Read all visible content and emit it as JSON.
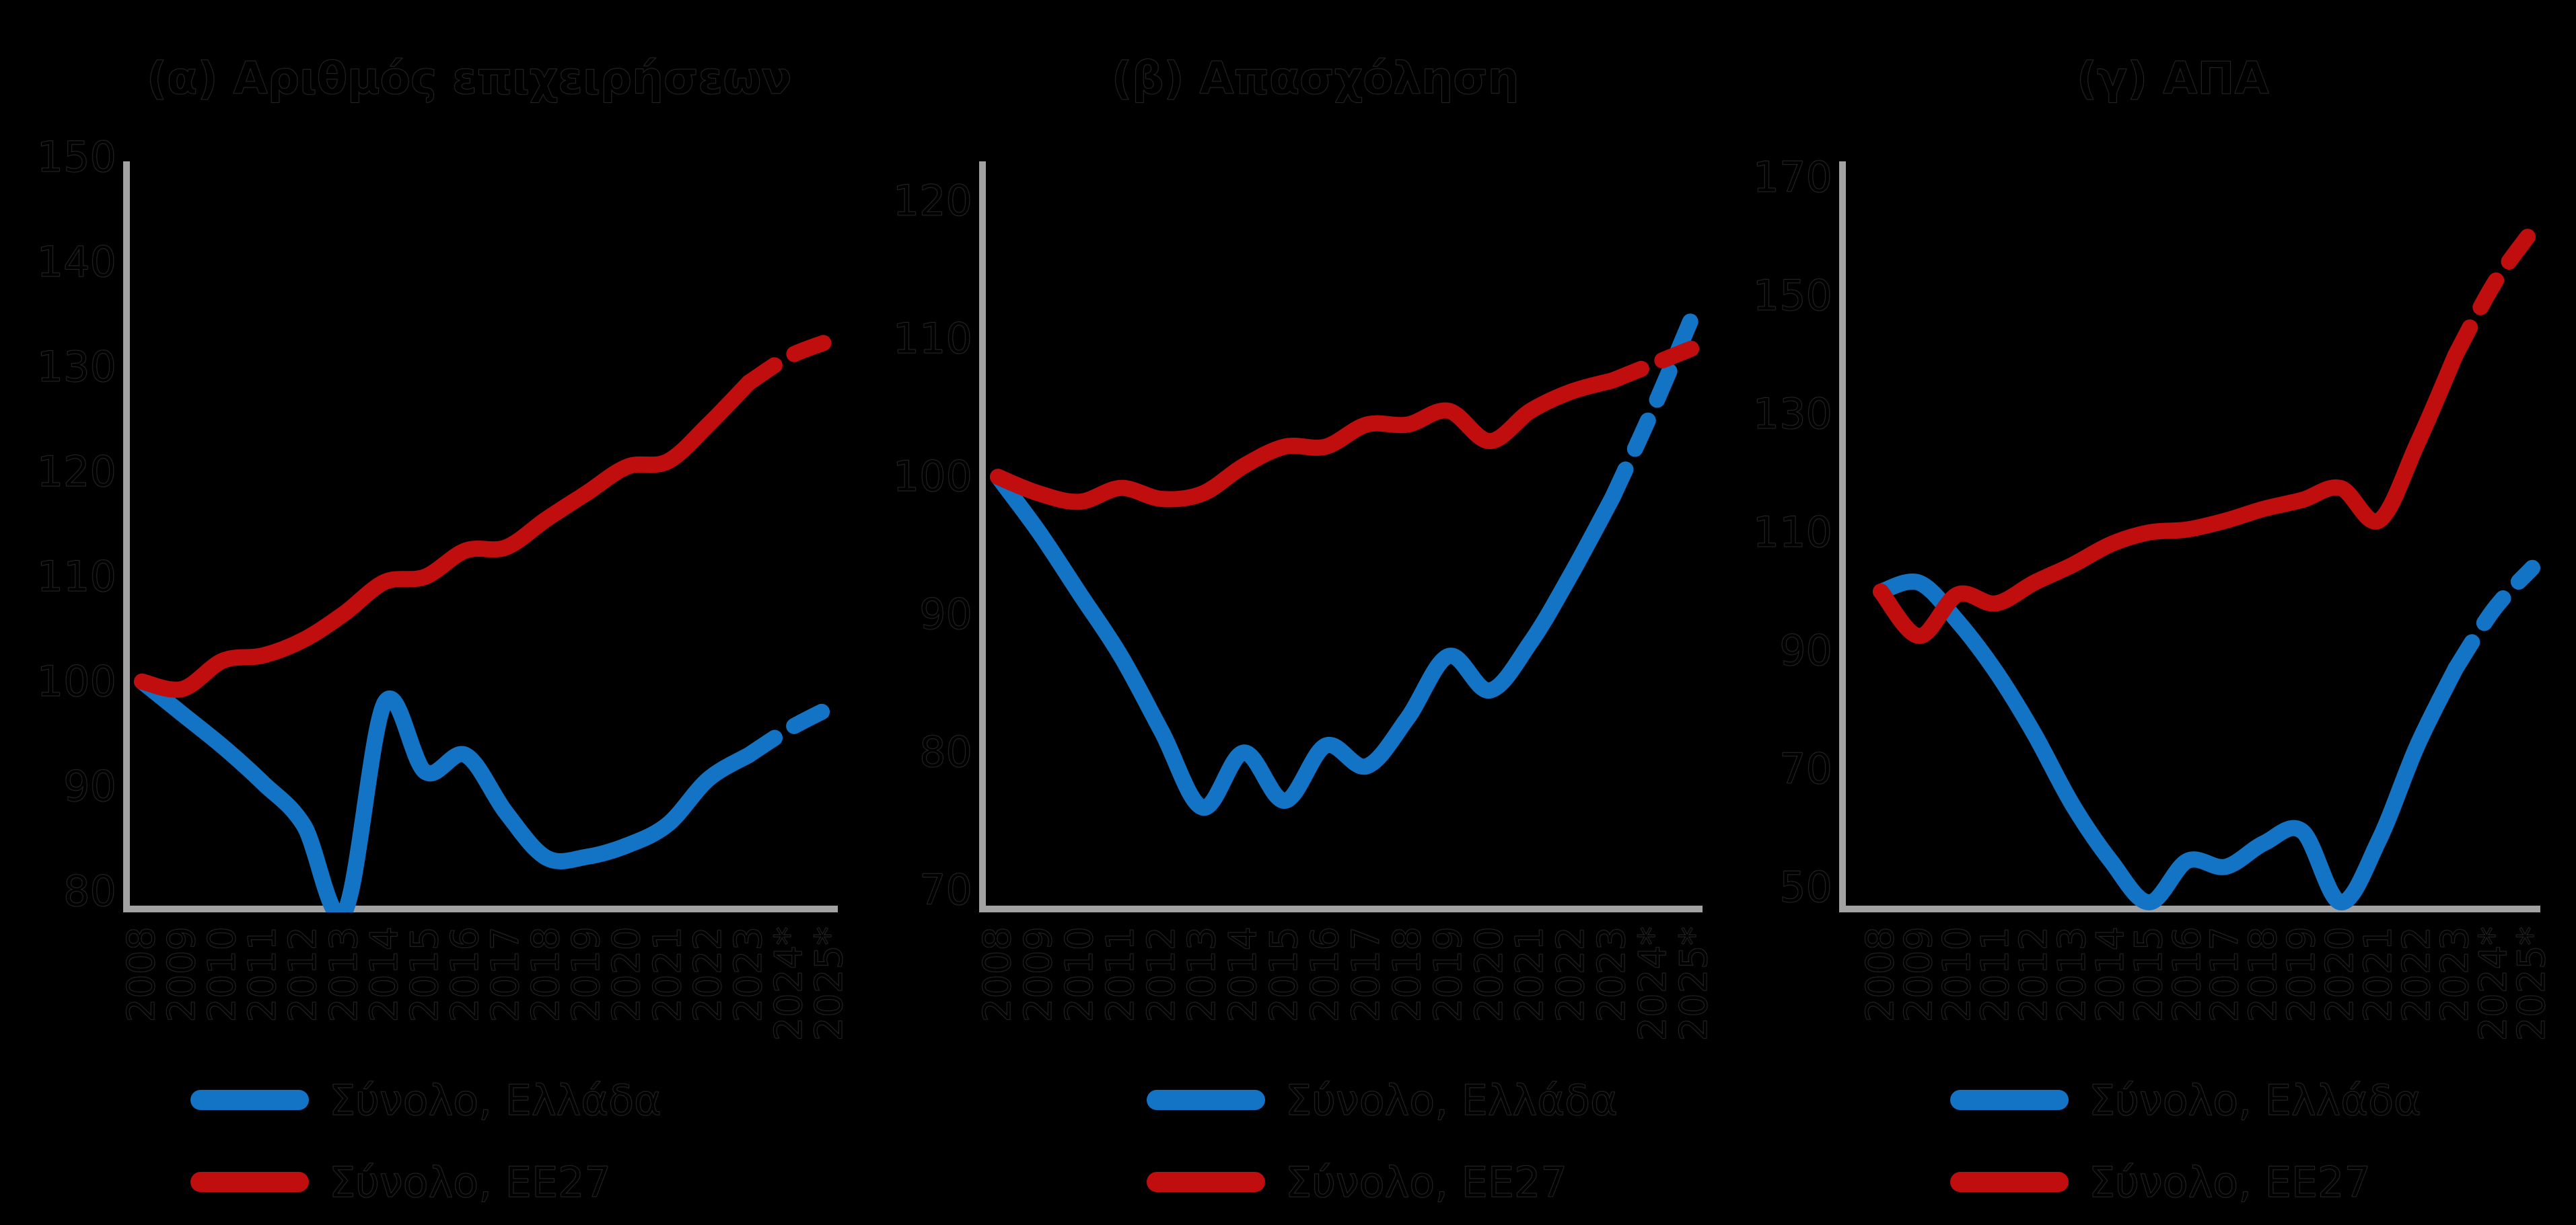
{
  "page": {
    "background": "#000000",
    "axis_color": "#a2a2a2",
    "accent_blue": "#1373c4",
    "accent_red": "#c00d0e"
  },
  "chart_data": [
    {
      "type": "line",
      "title": "(α) Αριθμός επιχειρήσεων",
      "x": [
        "2008",
        "2009",
        "2010",
        "2011",
        "2012",
        "2013",
        "2014",
        "2015",
        "2016",
        "2017",
        "2018",
        "2019",
        "2020",
        "2021",
        "2022",
        "2023",
        "2024*",
        "2025*"
      ],
      "xlabel": "",
      "ylabel": "",
      "ylim": [
        78.0,
        149.6
      ],
      "yticks": [
        80,
        90,
        100,
        110,
        120,
        130,
        140,
        150
      ],
      "grid": false,
      "legend_position": "bottom",
      "dashed_from_index": 15,
      "series": [
        {
          "name": "Σύνολο, Ελλάδα",
          "color": "#1373c4",
          "values": [
            100,
            96.9,
            93.8,
            90.3,
            86.3,
            78,
            98,
            91.4,
            93,
            87.5,
            83.2,
            83.3,
            84.4,
            86.4,
            90.7,
            93,
            95.5,
            97.5
          ]
        },
        {
          "name": "Σύνολο, ΕΕ27",
          "color": "#c00d0e",
          "values": [
            100,
            99.3,
            102,
            102.5,
            104,
            106.5,
            109.5,
            110,
            112.5,
            112.8,
            115.5,
            118,
            120.5,
            121,
            124.5,
            128.5,
            131,
            132.5
          ]
        }
      ]
    },
    {
      "type": "line",
      "title": "(β) Απασχόληση",
      "x": [
        "2008",
        "2009",
        "2010",
        "2011",
        "2012",
        "2013",
        "2014",
        "2015",
        "2016",
        "2017",
        "2018",
        "2019",
        "2020",
        "2021",
        "2022",
        "2023",
        "2024*",
        "2025*"
      ],
      "xlabel": "",
      "ylabel": "",
      "ylim": [
        68.4,
        122.9
      ],
      "yticks": [
        70,
        80,
        90,
        100,
        110,
        120
      ],
      "grid": false,
      "legend_position": "bottom",
      "dashed_from_index": 15,
      "series": [
        {
          "name": "Σύνολο, Ελλάδα",
          "color": "#1373c4",
          "values": [
            100,
            96,
            91.5,
            87,
            81.5,
            76,
            80,
            76.5,
            80.5,
            79,
            82.5,
            87,
            84.5,
            88,
            93,
            98.5,
            105,
            112
          ]
        },
        {
          "name": "Σύνολο, ΕΕ27",
          "color": "#c00d0e",
          "values": [
            100,
            98.8,
            98.2,
            99.2,
            98.4,
            98.8,
            100.8,
            102.2,
            102.2,
            103.8,
            103.8,
            104.8,
            102.6,
            104.8,
            106.2,
            107,
            108.2,
            109.4
          ]
        }
      ]
    },
    {
      "type": "line",
      "title": "(γ) ΑΠΑ",
      "x": [
        "2008",
        "2009",
        "2010",
        "2011",
        "2012",
        "2013",
        "2014",
        "2015",
        "2016",
        "2017",
        "2018",
        "2019",
        "2020",
        "2021",
        "2022",
        "2023",
        "2024*",
        "2025*"
      ],
      "xlabel": "",
      "ylabel": "",
      "ylim": [
        45.8,
        172.7
      ],
      "yticks": [
        50,
        70,
        90,
        110,
        130,
        150,
        170
      ],
      "grid": false,
      "legend_position": "bottom",
      "dashed_from_index": 15,
      "series": [
        {
          "name": "Σύνολο, Ελλάδα",
          "color": "#1373c4",
          "values": [
            100,
            101.5,
            95,
            86.5,
            76,
            64,
            54.5,
            47.5,
            54.5,
            53.5,
            57.5,
            59.5,
            47.5,
            58,
            74,
            87,
            97,
            104
          ]
        },
        {
          "name": "Σύνολο, ΕΕ27",
          "color": "#c00d0e",
          "values": [
            100,
            92.5,
            99.5,
            98,
            101.5,
            104.5,
            108,
            110,
            110.5,
            112,
            114,
            115.5,
            117.5,
            112,
            125,
            140,
            152,
            161
          ]
        }
      ]
    }
  ]
}
